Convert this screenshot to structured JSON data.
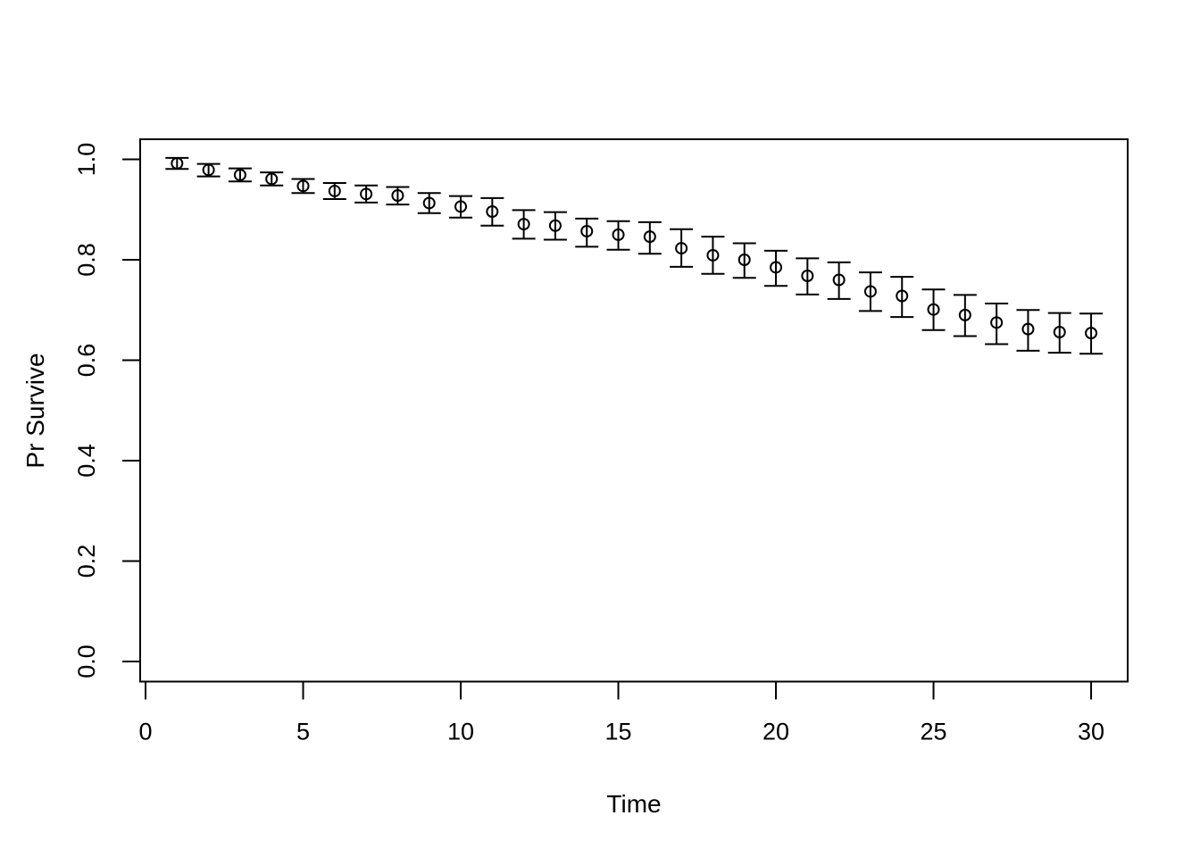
{
  "figure": {
    "background": "#ffffff",
    "stroke_color": "#000000"
  },
  "chart_data": {
    "type": "scatter",
    "subtype": "points-with-error-bars",
    "title": "",
    "xlabel": "Time",
    "ylabel": "Pr Survive",
    "xlim": [
      -0.17,
      31.16
    ],
    "ylim": [
      -0.04,
      1.04
    ],
    "grid": false,
    "legend": null,
    "marker": "open-circle",
    "x_ticks": [
      0,
      5,
      10,
      15,
      20,
      25,
      30
    ],
    "x_tick_labels": [
      "0",
      "5",
      "10",
      "15",
      "20",
      "25",
      "30"
    ],
    "y_ticks": [
      0.0,
      0.2,
      0.4,
      0.6,
      0.8,
      1.0
    ],
    "y_tick_labels": [
      "0.0",
      "0.2",
      "0.4",
      "0.6",
      "0.8",
      "1.0"
    ],
    "x": [
      1,
      2,
      3,
      4,
      5,
      6,
      7,
      8,
      9,
      10,
      11,
      12,
      13,
      14,
      15,
      16,
      17,
      18,
      19,
      20,
      21,
      22,
      23,
      24,
      25,
      26,
      27,
      28,
      29,
      30
    ],
    "y": [
      0.992,
      0.979,
      0.969,
      0.961,
      0.947,
      0.937,
      0.931,
      0.928,
      0.913,
      0.906,
      0.896,
      0.871,
      0.868,
      0.857,
      0.85,
      0.846,
      0.823,
      0.809,
      0.8,
      0.785,
      0.768,
      0.76,
      0.737,
      0.728,
      0.701,
      0.69,
      0.675,
      0.662,
      0.656,
      0.654
    ],
    "ci_low": [
      0.981,
      0.966,
      0.956,
      0.948,
      0.933,
      0.921,
      0.914,
      0.91,
      0.893,
      0.884,
      0.868,
      0.842,
      0.84,
      0.826,
      0.82,
      0.812,
      0.786,
      0.772,
      0.764,
      0.748,
      0.731,
      0.722,
      0.698,
      0.686,
      0.66,
      0.648,
      0.632,
      0.619,
      0.615,
      0.613
    ],
    "ci_high": [
      1.003,
      0.991,
      0.982,
      0.974,
      0.961,
      0.953,
      0.948,
      0.945,
      0.933,
      0.927,
      0.923,
      0.899,
      0.895,
      0.882,
      0.877,
      0.875,
      0.861,
      0.846,
      0.833,
      0.818,
      0.803,
      0.795,
      0.775,
      0.766,
      0.741,
      0.73,
      0.713,
      0.7,
      0.694,
      0.693
    ]
  }
}
